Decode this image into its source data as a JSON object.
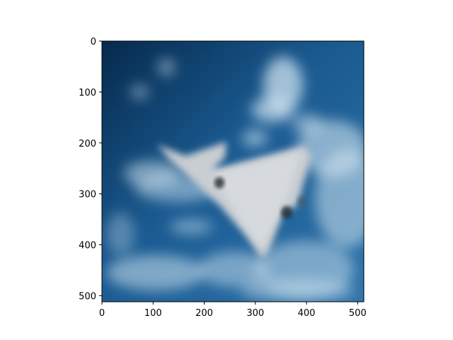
{
  "figure": {
    "background": "#ffffff"
  },
  "image": {
    "description_hint": "blurred photo of a delta-wing jet aircraft in a blue sky with clouds",
    "sky_dark": "#08335a",
    "sky_mid": "#1d5c93",
    "sky_light": "#5a9cc9",
    "cloud_color": "#cfe3ef",
    "plane_color": "#c9ced2",
    "plane_shadow": "#2a3238"
  },
  "axes": {
    "x_extent": [
      0,
      512
    ],
    "y_extent": [
      512,
      0
    ],
    "x_ticks": [
      {
        "value": 0,
        "label": "0"
      },
      {
        "value": 100,
        "label": "100"
      },
      {
        "value": 200,
        "label": "200"
      },
      {
        "value": 300,
        "label": "300"
      },
      {
        "value": 400,
        "label": "400"
      },
      {
        "value": 500,
        "label": "500"
      }
    ],
    "y_ticks": [
      {
        "value": 0,
        "label": "0"
      },
      {
        "value": 100,
        "label": "100"
      },
      {
        "value": 200,
        "label": "200"
      },
      {
        "value": 300,
        "label": "300"
      },
      {
        "value": 400,
        "label": "400"
      },
      {
        "value": 500,
        "label": "500"
      }
    ]
  }
}
